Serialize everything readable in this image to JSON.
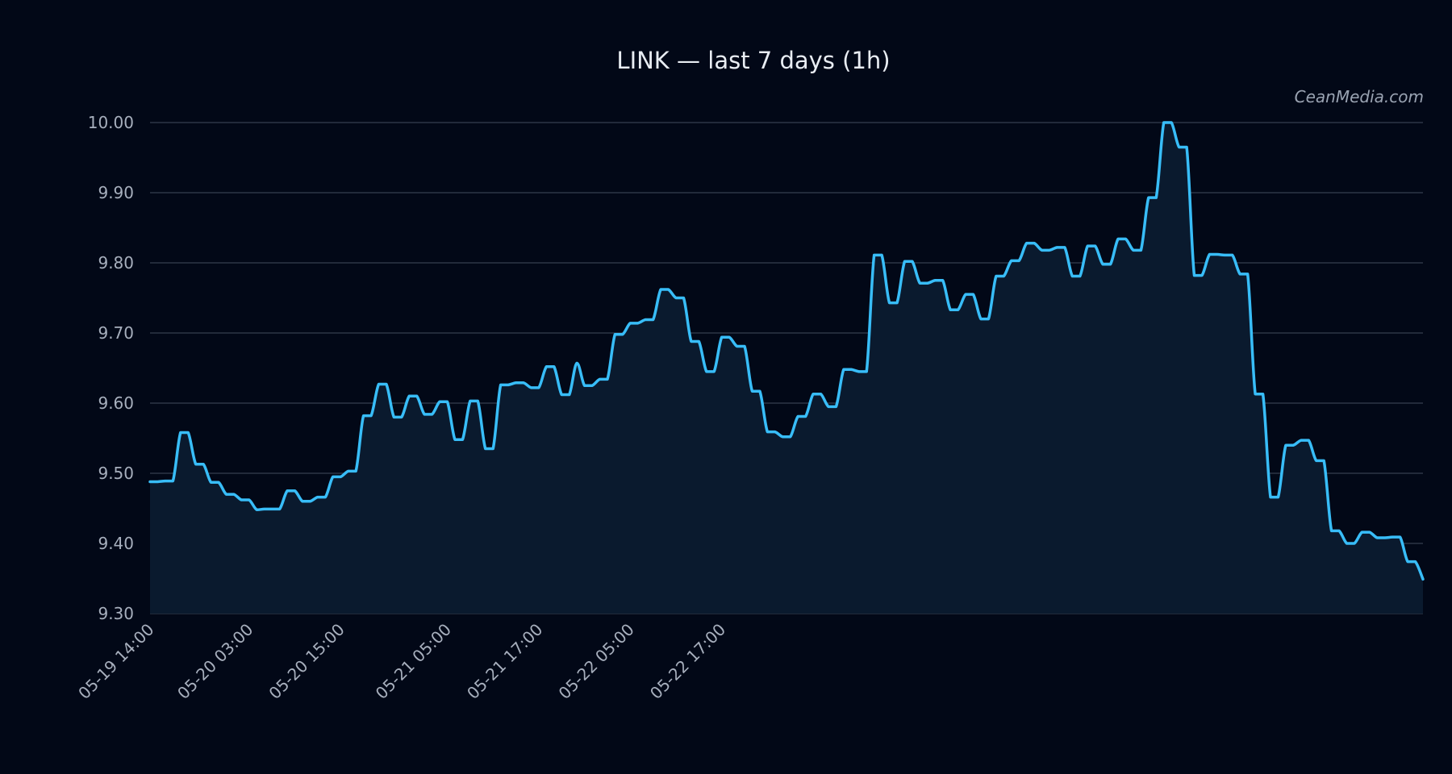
{
  "title": "LINK — last 7 days (1h)",
  "watermark": "CeanMedia.com",
  "colors": {
    "background": "#020817",
    "line": "#38bdf8",
    "area": "#0a1a2e",
    "grid": "#2c3646",
    "text": "#a7afbd"
  },
  "chart_data": {
    "type": "area",
    "title": "LINK — last 7 days (1h)",
    "xlabel": "",
    "ylabel": "",
    "ylim": [
      9.3,
      10.0
    ],
    "grid": true,
    "y_ticks": [
      "9.30",
      "9.40",
      "9.50",
      "9.60",
      "9.70",
      "9.80",
      "9.90",
      "10.00"
    ],
    "x_ticks": [
      "05-19 14:00",
      "05-20 03:00",
      "05-20 15:00",
      "05-21 05:00",
      "05-21 17:00",
      "05-22 05:00",
      "05-22 17:00"
    ],
    "x_start": "05-19 14:00",
    "interval": "1h",
    "series": [
      {
        "values": [
          9.488,
          9.488,
          9.489,
          9.489,
          9.558,
          9.558,
          9.513,
          9.513,
          9.487,
          9.487,
          9.47,
          9.47,
          9.462,
          9.462,
          9.448,
          9.449,
          9.449,
          9.449,
          9.475,
          9.475,
          9.46,
          9.46,
          9.466,
          9.466,
          9.495,
          9.495,
          9.503,
          9.503,
          9.582,
          9.582,
          9.627,
          9.627,
          9.58,
          9.58,
          9.61,
          9.61,
          9.584,
          9.584,
          9.602,
          9.602,
          9.548,
          9.548,
          9.603,
          9.603,
          9.535,
          9.535,
          9.626,
          9.626,
          9.629,
          9.629,
          9.622,
          9.622,
          9.652,
          9.652,
          9.612,
          9.612,
          9.657,
          9.625,
          9.625,
          9.634,
          9.634,
          9.698,
          9.698,
          9.714,
          9.714,
          9.719,
          9.719,
          9.762,
          9.762,
          9.75,
          9.75,
          9.688,
          9.688,
          9.645,
          9.645,
          9.694,
          9.694,
          9.681,
          9.681,
          9.617,
          9.617,
          9.559,
          9.559,
          9.552,
          9.552,
          9.581,
          9.581,
          9.613,
          9.613,
          9.595,
          9.595,
          9.648,
          9.648,
          9.645,
          9.645,
          9.811,
          9.811,
          9.743,
          9.743,
          9.802,
          9.802,
          9.771,
          9.771,
          9.775,
          9.775,
          9.733,
          9.733,
          9.755,
          9.755,
          9.72,
          9.72,
          9.781,
          9.781,
          9.803,
          9.803,
          9.828,
          9.828,
          9.818,
          9.818,
          9.822,
          9.822,
          9.781,
          9.781,
          9.824,
          9.824,
          9.798,
          9.798,
          9.834,
          9.834,
          9.818,
          9.818,
          9.893,
          9.893,
          10.0,
          10.0,
          9.965,
          9.965,
          9.782,
          9.782,
          9.812,
          9.812,
          9.811,
          9.811,
          9.784,
          9.784,
          9.613,
          9.613,
          9.466,
          9.466,
          9.54,
          9.54,
          9.547,
          9.547,
          9.518,
          9.518,
          9.418,
          9.418,
          9.4,
          9.4,
          9.416,
          9.416,
          9.408,
          9.408,
          9.409,
          9.409,
          9.374,
          9.374,
          9.349
        ]
      }
    ]
  }
}
